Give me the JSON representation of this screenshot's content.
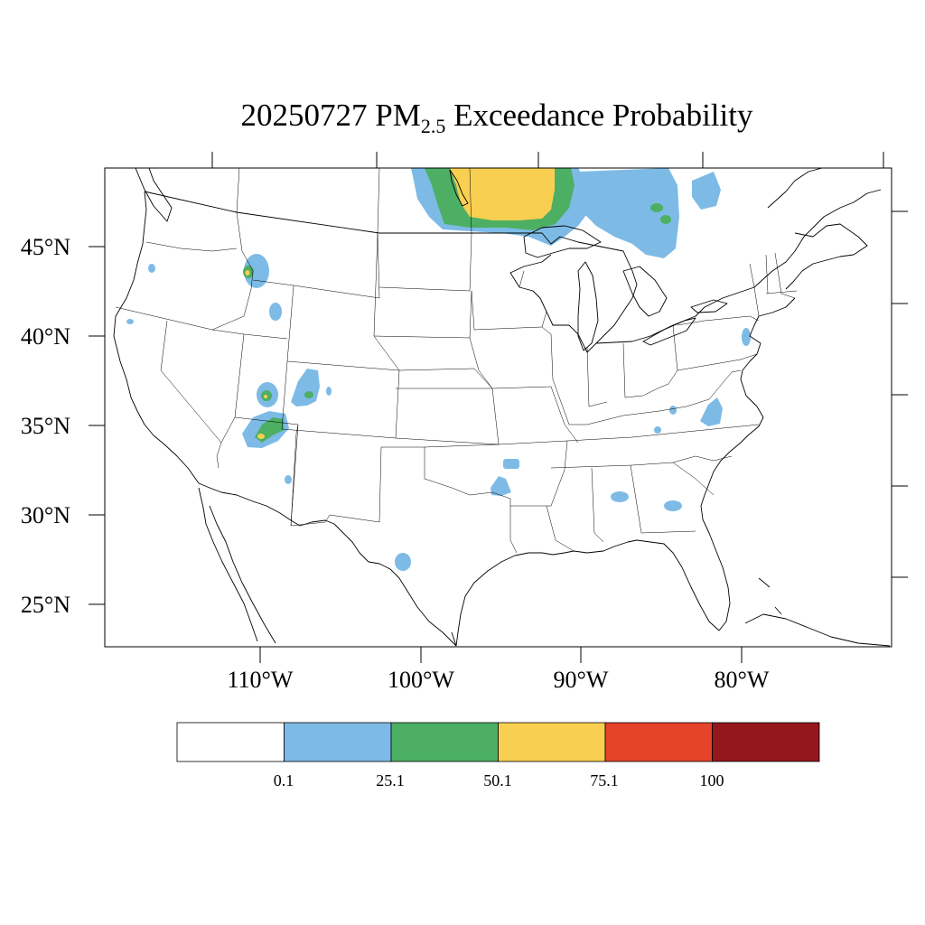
{
  "title": {
    "date": "20250727",
    "pm": "PM",
    "pm_sub": "2.5",
    "rest": "Exceedance Probability"
  },
  "axes": {
    "lat_labels": [
      "45°N",
      "40°N",
      "35°N",
      "30°N",
      "25°N"
    ],
    "lon_labels": [
      "110°W",
      "100°W",
      "90°W",
      "80°W"
    ]
  },
  "legend": {
    "colors": [
      "#ffffff",
      "#7dbbe6",
      "#4caf63",
      "#f9cf51",
      "#e5432a",
      "#94171d"
    ],
    "labels": [
      "0.1",
      "25.1",
      "50.1",
      "75.1",
      "100"
    ]
  },
  "colors": {
    "blue": "#7dbbe6",
    "green": "#4caf63",
    "yellow": "#f9cf51",
    "red": "#e5432a",
    "darkred": "#94171d"
  }
}
